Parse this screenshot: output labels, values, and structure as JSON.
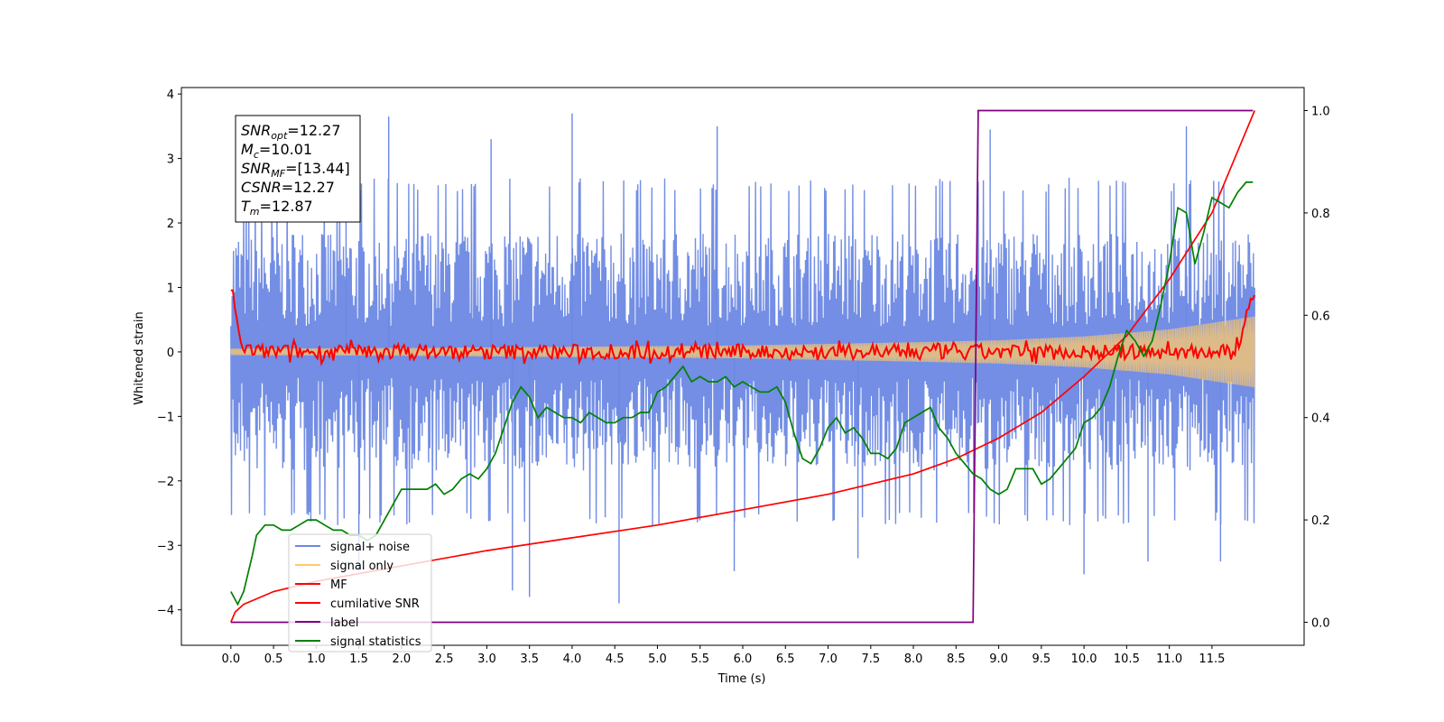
{
  "chart_data": {
    "type": "line",
    "xlabel": "Time (s)",
    "ylabel": "Whitened strain",
    "xlim": [
      -0.58,
      12.58
    ],
    "ylim": [
      -4.55,
      4.1
    ],
    "y2lim": [
      -0.045,
      1.045
    ],
    "x_ticks": [
      "0.0",
      "0.5",
      "1.0",
      "1.5",
      "2.0",
      "2.5",
      "3.0",
      "3.5",
      "4.0",
      "4.5",
      "5.0",
      "5.5",
      "6.0",
      "6.5",
      "7.0",
      "7.5",
      "8.0",
      "8.5",
      "9.0",
      "9.5",
      "10.0",
      "10.5",
      "11.0",
      "11.5"
    ],
    "y_ticks": [
      "4",
      "3",
      "2",
      "1",
      "0",
      "−1",
      "−2",
      "−3",
      "−4"
    ],
    "y2_ticks": [
      "1.0",
      "0.8",
      "0.6",
      "0.4",
      "0.2",
      "0.0"
    ],
    "annotation": {
      "lines": [
        {
          "var": "SNR",
          "sub": "opt",
          "value": "=12.27"
        },
        {
          "var": "M",
          "sub": "c",
          "value": "=10.01"
        },
        {
          "var": "SNR",
          "sub": "MF",
          "value": "=[13.44]"
        },
        {
          "var": "CSNR",
          "sub": "",
          "value": "=12.27"
        },
        {
          "var": "T",
          "sub": "m",
          "value": "=12.87"
        }
      ]
    },
    "legend": {
      "position": "lower-left",
      "entries": [
        {
          "label": "signal+ noise",
          "color": "#6b88e3"
        },
        {
          "label": "signal only",
          "color": "#ffc96b"
        },
        {
          "label": "MF",
          "color": "#ff0000"
        },
        {
          "label": "cumilative SNR",
          "color": "#ff0000"
        },
        {
          "label": "label",
          "color": "#800080"
        },
        {
          "label": "signal statistics",
          "color": "#008000"
        }
      ]
    },
    "series": [
      {
        "name": "signal+ noise",
        "axis": "left",
        "color": "#6b88e3",
        "envelope": {
          "x": [
            0,
            12
          ],
          "low": [
            -2.0,
            -2.0
          ],
          "high": [
            2.0,
            2.0
          ]
        },
        "spikes_high": [
          [
            1.35,
            3.6
          ],
          [
            1.85,
            3.65
          ],
          [
            4.0,
            3.7
          ],
          [
            3.05,
            3.3
          ],
          [
            5.7,
            3.5
          ],
          [
            8.9,
            3.45
          ],
          [
            11.2,
            3.5
          ]
        ],
        "spikes_low": [
          [
            1.5,
            -3.4
          ],
          [
            3.3,
            -3.7
          ],
          [
            3.5,
            -3.8
          ],
          [
            4.55,
            -3.9
          ],
          [
            5.9,
            -3.4
          ],
          [
            7.35,
            -3.2
          ],
          [
            10.0,
            -3.45
          ],
          [
            10.75,
            -3.25
          ],
          [
            11.6,
            -3.25
          ]
        ]
      },
      {
        "name": "signal only",
        "axis": "left",
        "color": "#ffc96b",
        "envelope": {
          "x": [
            0,
            2,
            4,
            6,
            8,
            9,
            10,
            11,
            12
          ],
          "high": [
            0.05,
            0.06,
            0.08,
            0.1,
            0.15,
            0.18,
            0.24,
            0.35,
            0.55
          ]
        }
      },
      {
        "name": "MF",
        "axis": "left",
        "color": "#ff0000",
        "x": [
          0,
          0.04,
          0.08,
          0.12,
          0.2,
          0.3,
          12,
          11.95,
          11.88,
          11.82,
          11.75
        ],
        "y": [
          1.0,
          0.8,
          0.3,
          0.1,
          0.05,
          0.0,
          1.0,
          0.8,
          0.4,
          0.15,
          0.05
        ],
        "noise_amplitude": 0.12
      },
      {
        "name": "cumilative SNR",
        "axis": "right",
        "color": "#ff0000",
        "x": [
          0,
          0.05,
          0.15,
          0.5,
          1.0,
          2.0,
          3.0,
          4.0,
          5.0,
          6.0,
          7.0,
          8.0,
          8.5,
          9.0,
          9.5,
          10.0,
          10.5,
          11.0,
          11.5,
          12.0
        ],
        "y": [
          0.0,
          0.02,
          0.035,
          0.06,
          0.08,
          0.11,
          0.14,
          0.165,
          0.19,
          0.22,
          0.25,
          0.29,
          0.32,
          0.36,
          0.41,
          0.48,
          0.56,
          0.67,
          0.8,
          1.0
        ]
      },
      {
        "name": "label",
        "axis": "right",
        "color": "#800080",
        "x": [
          0,
          8.7,
          8.76,
          11.98
        ],
        "y": [
          0,
          0,
          1,
          1
        ]
      },
      {
        "name": "signal statistics",
        "axis": "right",
        "color": "#008000",
        "x": [
          0,
          0.08,
          0.15,
          0.25,
          0.3,
          0.4,
          0.5,
          0.6,
          0.7,
          0.8,
          0.9,
          1.0,
          1.1,
          1.2,
          1.3,
          1.4,
          1.5,
          1.6,
          1.7,
          1.8,
          1.9,
          2.0,
          2.1,
          2.2,
          2.3,
          2.4,
          2.5,
          2.6,
          2.7,
          2.8,
          2.9,
          3.0,
          3.1,
          3.2,
          3.3,
          3.4,
          3.5,
          3.6,
          3.7,
          3.8,
          3.9,
          4.0,
          4.1,
          4.2,
          4.3,
          4.4,
          4.5,
          4.6,
          4.7,
          4.8,
          4.9,
          5.0,
          5.1,
          5.2,
          5.3,
          5.4,
          5.5,
          5.6,
          5.7,
          5.8,
          5.9,
          6.0,
          6.1,
          6.2,
          6.3,
          6.4,
          6.5,
          6.6,
          6.7,
          6.8,
          6.9,
          7.0,
          7.1,
          7.2,
          7.3,
          7.4,
          7.5,
          7.6,
          7.7,
          7.8,
          7.9,
          8.0,
          8.1,
          8.2,
          8.3,
          8.4,
          8.5,
          8.6,
          8.7,
          8.8,
          8.9,
          9.0,
          9.1,
          9.2,
          9.3,
          9.4,
          9.5,
          9.6,
          9.7,
          9.8,
          9.9,
          10.0,
          10.1,
          10.2,
          10.3,
          10.4,
          10.5,
          10.6,
          10.7,
          10.8,
          10.9,
          11.0,
          11.1,
          11.2,
          11.3,
          11.4,
          11.5,
          11.6,
          11.7,
          11.8,
          11.9,
          11.98
        ],
        "y": [
          0.06,
          0.035,
          0.06,
          0.13,
          0.17,
          0.19,
          0.19,
          0.18,
          0.18,
          0.19,
          0.2,
          0.2,
          0.19,
          0.18,
          0.18,
          0.17,
          0.17,
          0.16,
          0.17,
          0.2,
          0.23,
          0.26,
          0.26,
          0.26,
          0.26,
          0.27,
          0.25,
          0.26,
          0.28,
          0.29,
          0.28,
          0.3,
          0.33,
          0.38,
          0.43,
          0.46,
          0.44,
          0.4,
          0.42,
          0.41,
          0.4,
          0.4,
          0.39,
          0.41,
          0.4,
          0.39,
          0.39,
          0.4,
          0.4,
          0.41,
          0.41,
          0.45,
          0.46,
          0.48,
          0.5,
          0.47,
          0.48,
          0.47,
          0.47,
          0.48,
          0.46,
          0.47,
          0.46,
          0.45,
          0.45,
          0.46,
          0.43,
          0.37,
          0.32,
          0.31,
          0.34,
          0.38,
          0.4,
          0.37,
          0.38,
          0.36,
          0.33,
          0.33,
          0.32,
          0.34,
          0.39,
          0.4,
          0.41,
          0.42,
          0.38,
          0.36,
          0.33,
          0.31,
          0.29,
          0.28,
          0.26,
          0.25,
          0.26,
          0.3,
          0.3,
          0.3,
          0.27,
          0.28,
          0.3,
          0.32,
          0.34,
          0.39,
          0.4,
          0.42,
          0.46,
          0.52,
          0.57,
          0.55,
          0.52,
          0.55,
          0.62,
          0.7,
          0.81,
          0.8,
          0.7,
          0.76,
          0.83,
          0.82,
          0.81,
          0.84,
          0.86,
          0.86
        ]
      }
    ]
  }
}
